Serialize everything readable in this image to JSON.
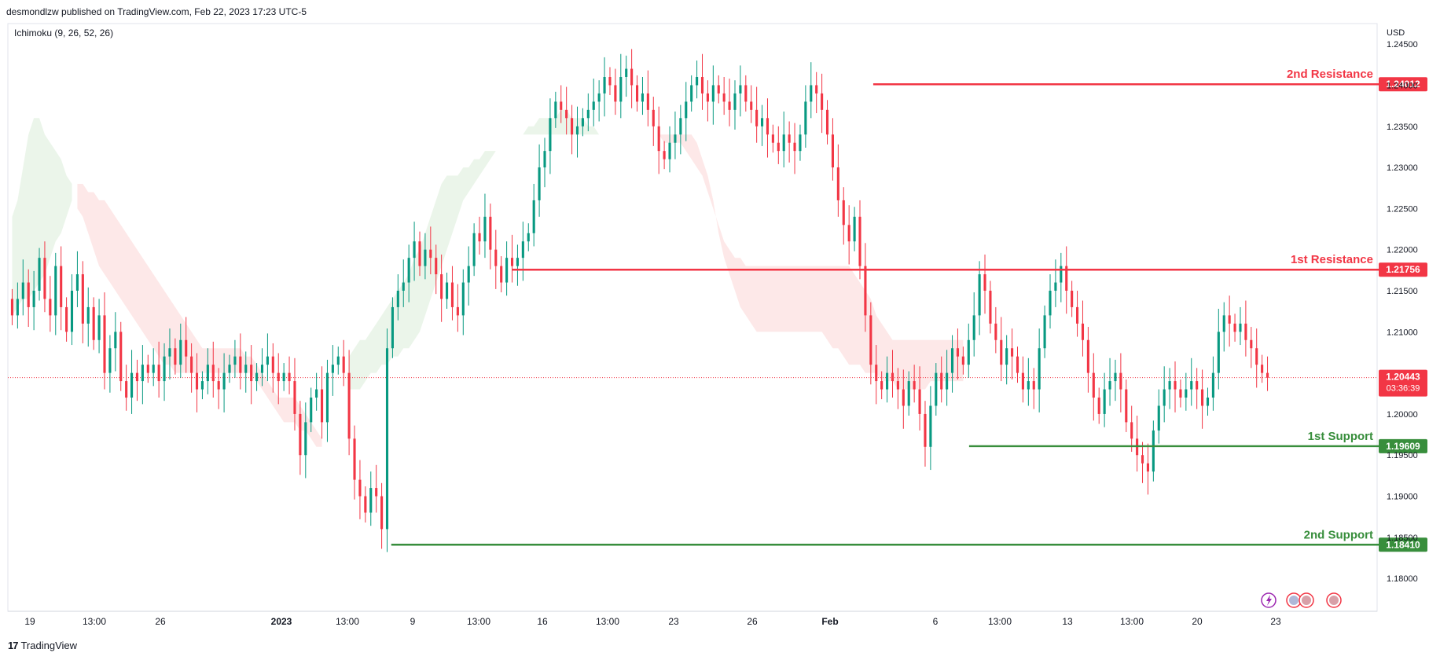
{
  "publisher_line": "desmondlzw published on TradingView.com, Feb 22, 2023 17:23 UTC-5",
  "footer_brand": "TradingView",
  "chart_data": {
    "type": "candlestick",
    "indicator": "Ichimoku (9, 26, 52, 26)",
    "currency": "USD",
    "y_range": [
      1.176,
      1.2475
    ],
    "y_ticks": [
      "1.18000",
      "1.18500",
      "1.19000",
      "1.19500",
      "1.20000",
      "1.20500",
      "1.21000",
      "1.21500",
      "1.22000",
      "1.22500",
      "1.23000",
      "1.23500",
      "1.24000",
      "1.24500"
    ],
    "x_tick_labels": [
      "19",
      "13:00",
      "26",
      "2023",
      "13:00",
      "9",
      "13:00",
      "16",
      "13:00",
      "23",
      "26",
      "Feb",
      "6",
      "13:00",
      "13",
      "13:00",
      "20",
      "23"
    ],
    "last_price": "1.20443",
    "countdown": "03:36:39",
    "levels": [
      {
        "name": "2nd Resistance",
        "value": "1.24012",
        "color": "#f23645",
        "start_fraction": 0.632
      },
      {
        "name": "1st Resistance",
        "value": "1.21756",
        "color": "#f23645",
        "start_fraction": 0.368
      },
      {
        "name": "1st Support",
        "value": "1.19609",
        "color": "#388e3c",
        "start_fraction": 0.702
      },
      {
        "name": "2nd Support",
        "value": "1.18410",
        "color": "#388e3c",
        "start_fraction": 0.28
      }
    ],
    "closes": [
      1.212,
      1.214,
      1.216,
      1.213,
      1.215,
      1.219,
      1.214,
      1.212,
      1.218,
      1.213,
      1.21,
      1.215,
      1.217,
      1.211,
      1.213,
      1.209,
      1.212,
      1.205,
      1.208,
      1.21,
      1.204,
      1.202,
      1.205,
      1.204,
      1.206,
      1.205,
      1.206,
      1.204,
      1.207,
      1.208,
      1.206,
      1.209,
      1.207,
      1.205,
      1.203,
      1.204,
      1.206,
      1.204,
      1.203,
      1.205,
      1.206,
      1.207,
      1.205,
      1.206,
      1.204,
      1.205,
      1.206,
      1.207,
      1.205,
      1.204,
      1.205,
      1.204,
      1.2,
      1.195,
      1.199,
      1.202,
      1.203,
      1.199,
      1.205,
      1.206,
      1.207,
      1.205,
      1.197,
      1.192,
      1.19,
      1.188,
      1.191,
      1.19,
      1.186,
      1.208,
      1.213,
      1.215,
      1.216,
      1.219,
      1.221,
      1.218,
      1.22,
      1.219,
      1.217,
      1.214,
      1.216,
      1.213,
      1.212,
      1.216,
      1.218,
      1.222,
      1.221,
      1.224,
      1.22,
      1.218,
      1.216,
      1.219,
      1.218,
      1.219,
      1.221,
      1.222,
      1.226,
      1.23,
      1.232,
      1.236,
      1.238,
      1.237,
      1.236,
      1.234,
      1.235,
      1.236,
      1.237,
      1.238,
      1.239,
      1.241,
      1.24,
      1.238,
      1.241,
      1.242,
      1.24,
      1.238,
      1.239,
      1.237,
      1.235,
      1.232,
      1.231,
      1.233,
      1.234,
      1.236,
      1.238,
      1.24,
      1.241,
      1.239,
      1.238,
      1.24,
      1.239,
      1.238,
      1.237,
      1.239,
      1.24,
      1.238,
      1.237,
      1.235,
      1.236,
      1.234,
      1.233,
      1.232,
      1.234,
      1.233,
      1.232,
      1.234,
      1.238,
      1.24,
      1.239,
      1.237,
      1.234,
      1.23,
      1.226,
      1.223,
      1.221,
      1.224,
      1.218,
      1.212,
      1.206,
      1.204,
      1.203,
      1.205,
      1.204,
      1.203,
      1.201,
      1.204,
      1.203,
      1.2,
      1.196,
      1.201,
      1.205,
      1.203,
      1.205,
      1.208,
      1.207,
      1.206,
      1.209,
      1.212,
      1.217,
      1.215,
      1.211,
      1.209,
      1.206,
      1.208,
      1.207,
      1.205,
      1.203,
      1.204,
      1.203,
      1.208,
      1.212,
      1.215,
      1.216,
      1.218,
      1.215,
      1.213,
      1.211,
      1.209,
      1.205,
      1.202,
      1.2,
      1.203,
      1.204,
      1.205,
      1.203,
      1.199,
      1.197,
      1.195,
      1.194,
      1.193,
      1.198,
      1.201,
      1.203,
      1.204,
      1.203,
      1.202,
      1.203,
      1.204,
      1.203,
      1.201,
      1.202,
      1.205,
      1.21,
      1.212,
      1.211,
      1.21,
      1.211,
      1.209,
      1.208,
      1.206,
      1.205,
      1.2044
    ],
    "kumo": [
      {
        "color": "green",
        "from": 0,
        "to": 11,
        "top": [
          1.224,
          1.226,
          1.23,
          1.234,
          1.236,
          1.236,
          1.234,
          1.233,
          1.232,
          1.231,
          1.229,
          1.228
        ],
        "bottom": [
          1.212,
          1.213,
          1.214,
          1.214,
          1.215,
          1.216,
          1.217,
          1.219,
          1.221,
          1.222,
          1.224,
          1.226
        ]
      },
      {
        "color": "red",
        "from": 12,
        "to": 57,
        "top": [
          1.228,
          1.228,
          1.227,
          1.227,
          1.226,
          1.226,
          1.225,
          1.224,
          1.223,
          1.222,
          1.221,
          1.22,
          1.219,
          1.218,
          1.217,
          1.216,
          1.215,
          1.214,
          1.213,
          1.212,
          1.211,
          1.21,
          1.209,
          1.208,
          1.208,
          1.208,
          1.208,
          1.208,
          1.208,
          1.208,
          1.208,
          1.207,
          1.207,
          1.206,
          1.205,
          1.204,
          1.203,
          1.202,
          1.202,
          1.202,
          1.202,
          1.201,
          1.2,
          1.199,
          1.198,
          1.197
        ],
        "bottom": [
          1.225,
          1.224,
          1.222,
          1.22,
          1.218,
          1.217,
          1.216,
          1.215,
          1.214,
          1.213,
          1.212,
          1.211,
          1.21,
          1.209,
          1.208,
          1.207,
          1.206,
          1.206,
          1.205,
          1.205,
          1.205,
          1.205,
          1.205,
          1.205,
          1.205,
          1.205,
          1.205,
          1.205,
          1.205,
          1.205,
          1.205,
          1.205,
          1.205,
          1.204,
          1.203,
          1.202,
          1.201,
          1.2,
          1.199,
          1.199,
          1.199,
          1.198,
          1.198,
          1.197,
          1.196,
          1.196
        ]
      },
      {
        "color": "green",
        "from": 62,
        "to": 108,
        "top": [
          1.207,
          1.208,
          1.209,
          1.209,
          1.21,
          1.211,
          1.212,
          1.213,
          1.214,
          1.215,
          1.216,
          1.217,
          1.219,
          1.22,
          1.222,
          1.224,
          1.226,
          1.228,
          1.229,
          1.229,
          1.229,
          1.23,
          1.23,
          1.231,
          1.231,
          1.232,
          1.232,
          1.232,
          1.233,
          1.233,
          1.234,
          1.234,
          1.234,
          1.235,
          1.235,
          1.236,
          1.236,
          1.236,
          1.236,
          1.237,
          1.237,
          1.236,
          1.236,
          1.236,
          1.235,
          1.235,
          1.234
        ],
        "bottom": [
          1.203,
          1.203,
          1.203,
          1.204,
          1.205,
          1.205,
          1.206,
          1.206,
          1.207,
          1.207,
          1.208,
          1.208,
          1.209,
          1.21,
          1.212,
          1.214,
          1.216,
          1.218,
          1.22,
          1.222,
          1.224,
          1.226,
          1.227,
          1.228,
          1.229,
          1.23,
          1.231,
          1.232,
          1.233,
          1.233,
          1.234,
          1.234,
          1.234,
          1.234,
          1.234,
          1.234,
          1.234,
          1.234,
          1.234,
          1.234,
          1.234,
          1.234,
          1.234,
          1.234,
          1.234,
          1.234,
          1.234
        ]
      },
      {
        "color": "red",
        "from": 108,
        "to": 175,
        "top": [
          1.234,
          1.234,
          1.234,
          1.234,
          1.234,
          1.234,
          1.234,
          1.234,
          1.234,
          1.234,
          1.234,
          1.234,
          1.233,
          1.233,
          1.233,
          1.233,
          1.232,
          1.231,
          1.23,
          1.229,
          1.227,
          1.225,
          1.223,
          1.221,
          1.22,
          1.219,
          1.219,
          1.218,
          1.218,
          1.218,
          1.218,
          1.218,
          1.218,
          1.218,
          1.218,
          1.218,
          1.218,
          1.218,
          1.218,
          1.218,
          1.218,
          1.218,
          1.218,
          1.218,
          1.218,
          1.218,
          1.218,
          1.217,
          1.216,
          1.215,
          1.214,
          1.212,
          1.211,
          1.21,
          1.209,
          1.209,
          1.209,
          1.209,
          1.209,
          1.209,
          1.209,
          1.209,
          1.209,
          1.209,
          1.209,
          1.209,
          1.209,
          1.209
        ],
        "bottom": [
          1.234,
          1.234,
          1.234,
          1.234,
          1.234,
          1.234,
          1.234,
          1.234,
          1.234,
          1.234,
          1.234,
          1.234,
          1.234,
          1.234,
          1.234,
          1.234,
          1.234,
          1.234,
          1.233,
          1.231,
          1.229,
          1.226,
          1.222,
          1.219,
          1.217,
          1.215,
          1.213,
          1.212,
          1.211,
          1.21,
          1.21,
          1.21,
          1.21,
          1.21,
          1.21,
          1.21,
          1.21,
          1.21,
          1.21,
          1.21,
          1.21,
          1.21,
          1.209,
          1.208,
          1.208,
          1.207,
          1.206,
          1.206,
          1.206,
          1.205,
          1.205,
          1.205,
          1.204,
          1.204,
          1.204,
          1.203,
          1.203,
          1.203,
          1.203,
          1.203,
          1.203,
          1.204,
          1.204,
          1.204,
          1.204,
          1.204,
          1.204,
          1.204
        ]
      }
    ]
  }
}
